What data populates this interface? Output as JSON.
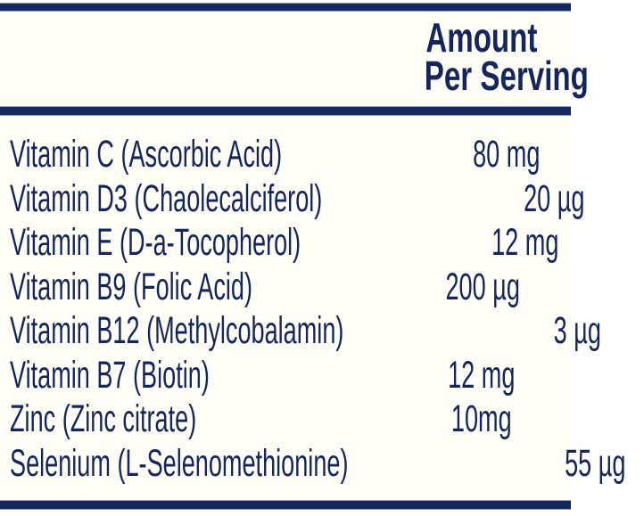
{
  "panel": {
    "accent_color": "#14265B",
    "background_color": "#FFFEF7"
  },
  "header": {
    "line1": "Amount",
    "line2": "Per Serving"
  },
  "table": {
    "rows": [
      {
        "nutrient": "Vitamin C (Ascorbic Acid)",
        "amount": "80 mg"
      },
      {
        "nutrient": "Vitamin D3 (Chaolecalciferol)",
        "amount": "20 µg"
      },
      {
        "nutrient": "Vitamin E (D-a-Tocopherol)",
        "amount": "12 mg"
      },
      {
        "nutrient": "Vitamin B9 (Folic Acid)",
        "amount": "200 µg"
      },
      {
        "nutrient": "Vitamin B12 (Methylcobalamin)",
        "amount": "3 µg"
      },
      {
        "nutrient": "Vitamin B7 (Biotin)",
        "amount": "12 mg"
      },
      {
        "nutrient": "Zinc (Zinc citrate)",
        "amount": "10mg"
      },
      {
        "nutrient": "Selenium (L-Selenomethionine)",
        "amount": "55 µg"
      }
    ]
  }
}
